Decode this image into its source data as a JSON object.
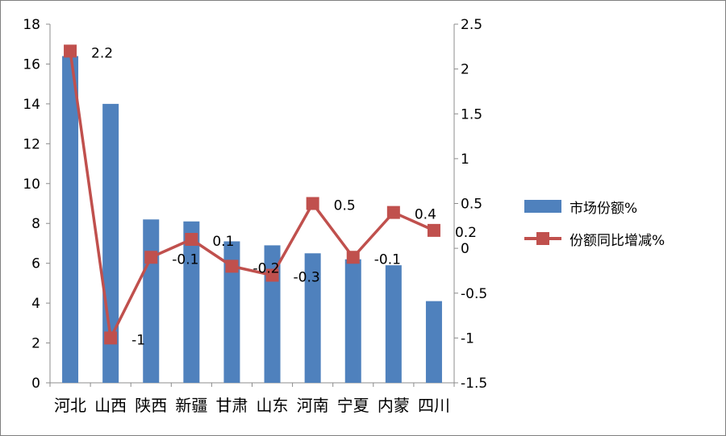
{
  "chart_data": {
    "type": "bar+line",
    "categories": [
      "河北",
      "山西",
      "陕西",
      "新疆",
      "甘肃",
      "山东",
      "河南",
      "宁夏",
      "内蒙",
      "四川"
    ],
    "series": [
      {
        "name": "市场份额%",
        "type": "bar",
        "axis": "left",
        "color": "#4F81BD",
        "values": [
          16.4,
          14.0,
          8.2,
          8.1,
          7.1,
          6.9,
          6.5,
          6.2,
          5.9,
          4.1
        ]
      },
      {
        "name": "份额同比增减%",
        "type": "line",
        "axis": "right",
        "color": "#C0504D",
        "values": [
          2.2,
          -1,
          -0.1,
          0.1,
          -0.2,
          -0.3,
          0.5,
          -0.1,
          0.4,
          0.2
        ],
        "data_labels": [
          "2.2",
          "-1",
          "-0.1",
          "0.1",
          "-0.2",
          "-0.3",
          "0.5",
          "-0.1",
          "0.4",
          "0.2"
        ]
      }
    ],
    "y_left": {
      "min": 0,
      "max": 18,
      "step": 2,
      "ticks": [
        "0",
        "2",
        "4",
        "6",
        "8",
        "10",
        "12",
        "14",
        "16",
        "18"
      ]
    },
    "y_right": {
      "min": -1.5,
      "max": 2.5,
      "step": 0.5,
      "ticks": [
        "-1.5",
        "-1",
        "-0.5",
        "0",
        "0.5",
        "1",
        "1.5",
        "2",
        "2.5"
      ]
    },
    "grid": false,
    "legend_position": "right"
  }
}
